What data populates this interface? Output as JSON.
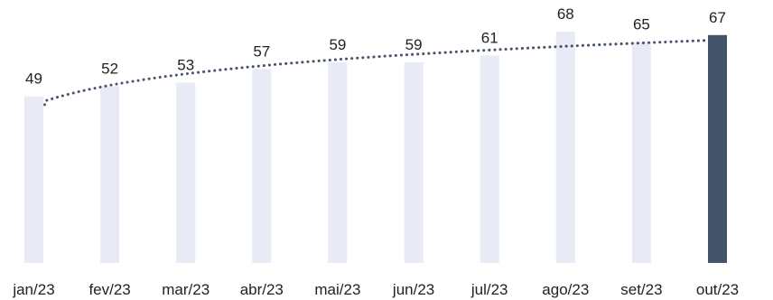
{
  "chart_data": {
    "type": "bar",
    "categories": [
      "jan/23",
      "fev/23",
      "mar/23",
      "abr/23",
      "mai/23",
      "jun/23",
      "jul/23",
      "ago/23",
      "set/23",
      "out/23"
    ],
    "values": [
      49,
      52,
      53,
      57,
      59,
      59,
      61,
      68,
      65,
      67
    ],
    "title": "",
    "xlabel": "",
    "ylabel": "",
    "ylim": [
      0,
      72
    ],
    "grid": false,
    "legend": "none",
    "trendline": {
      "style": "dotted",
      "type": "logarithmic"
    },
    "highlight_index": 9
  },
  "colors": {
    "bar": "#e8eaf6",
    "highlight_bar": "#44546a",
    "trendline": "#44546a",
    "text": "#222222"
  }
}
